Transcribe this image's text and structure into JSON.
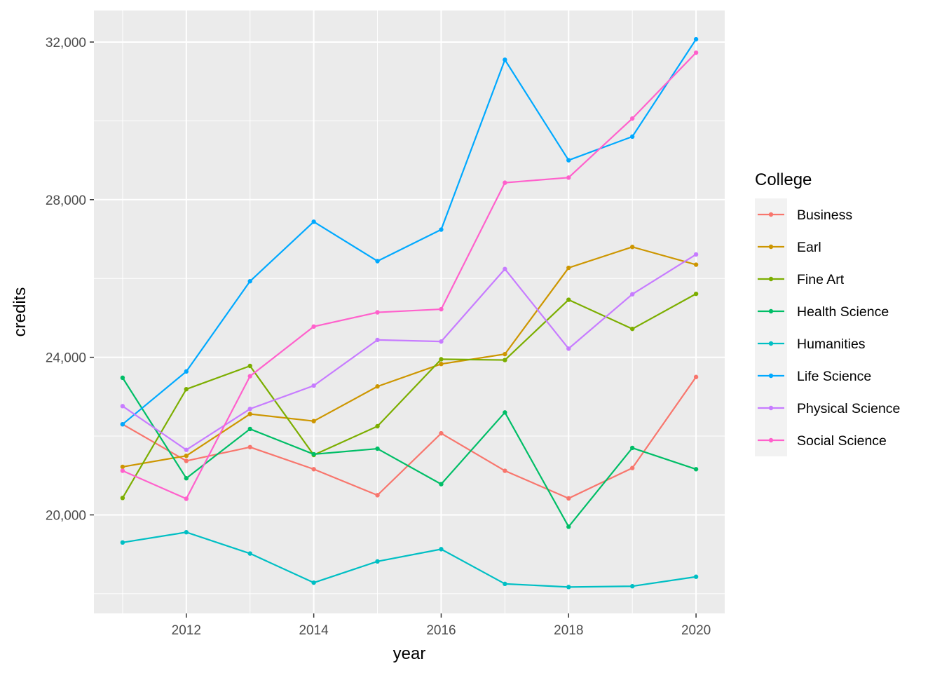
{
  "chart_data": {
    "type": "line",
    "xlabel": "year",
    "ylabel": "credits",
    "xlim": [
      2010.55,
      2020.45
    ],
    "ylim": [
      17500,
      32800
    ],
    "x_ticks": [
      2012,
      2014,
      2016,
      2018,
      2020
    ],
    "x_tick_labels": [
      "2012",
      "2014",
      "2016",
      "2018",
      "2020"
    ],
    "y_ticks": [
      20000,
      24000,
      28000,
      32000
    ],
    "y_tick_labels": [
      "20,000",
      "24,000",
      "28,000",
      "32,000"
    ],
    "grid": true,
    "legend": {
      "title": "College",
      "position": "right"
    },
    "x": [
      2011,
      2012,
      2013,
      2014,
      2015,
      2016,
      2017,
      2018,
      2019,
      2020
    ],
    "series": [
      {
        "name": "Business",
        "color": "#F8766D",
        "values": [
          22300,
          21370,
          21720,
          21160,
          20500,
          22070,
          21120,
          20420,
          21190,
          23500
        ]
      },
      {
        "name": "Earl",
        "color": "#CD9600",
        "values": [
          21220,
          21500,
          22560,
          22380,
          23260,
          23830,
          24080,
          26270,
          26800,
          26350
        ]
      },
      {
        "name": "Fine Art",
        "color": "#7CAE00",
        "values": [
          20430,
          23190,
          23780,
          21520,
          22250,
          23950,
          23930,
          25460,
          24720,
          25610
        ]
      },
      {
        "name": "Health Science",
        "color": "#00BE67",
        "values": [
          23480,
          20930,
          22180,
          21540,
          21680,
          20780,
          22600,
          19700,
          21700,
          21160
        ]
      },
      {
        "name": "Humanities",
        "color": "#00BFC4",
        "values": [
          19300,
          19560,
          19020,
          18280,
          18820,
          19130,
          18250,
          18170,
          18190,
          18430
        ]
      },
      {
        "name": "Life Science",
        "color": "#00A9FF",
        "values": [
          22300,
          23640,
          25930,
          27440,
          26440,
          27240,
          31550,
          29000,
          29600,
          32070
        ]
      },
      {
        "name": "Physical Science",
        "color": "#C77CFF",
        "values": [
          22760,
          21650,
          22690,
          23280,
          24440,
          24400,
          26240,
          24220,
          25600,
          26610
        ]
      },
      {
        "name": "Social Science",
        "color": "#FF61CC",
        "values": [
          21120,
          20410,
          23520,
          24780,
          25140,
          25220,
          28430,
          28560,
          30060,
          31730
        ]
      }
    ]
  }
}
